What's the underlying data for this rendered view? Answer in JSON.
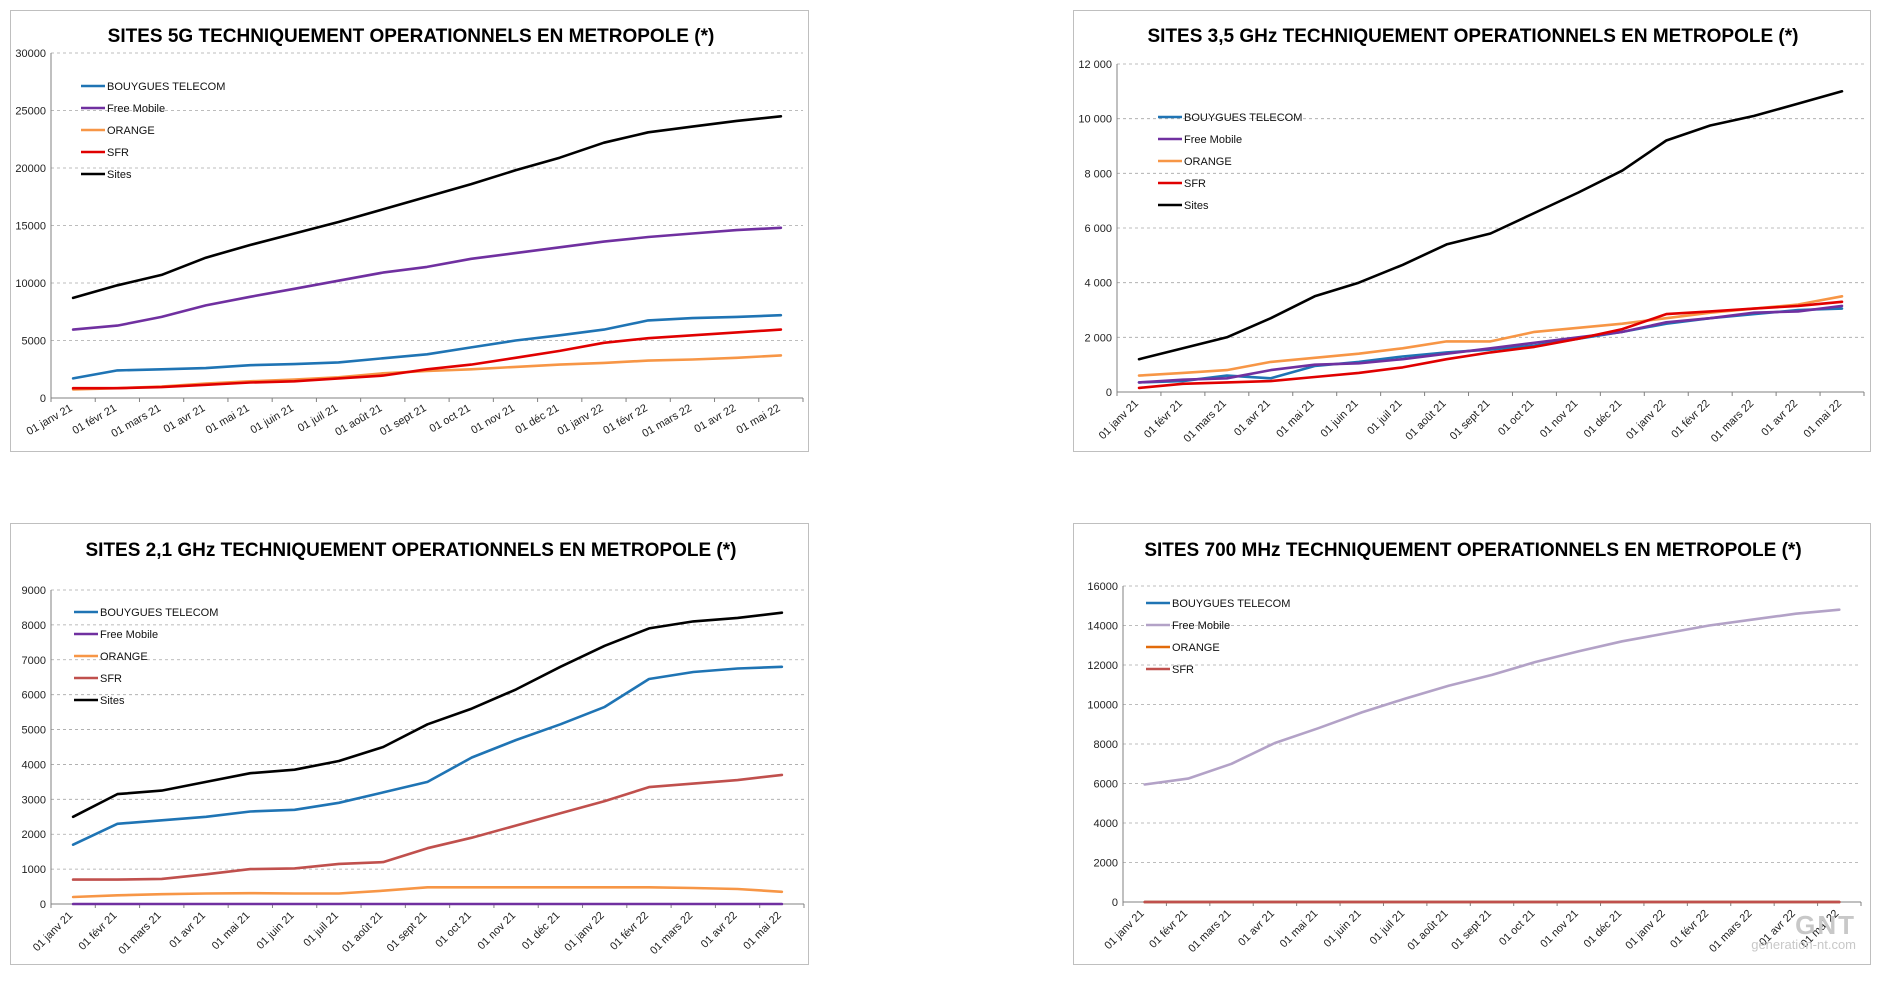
{
  "watermark": {
    "logo": "GNT",
    "site": "generation-nt.com"
  },
  "chart_data": [
    {
      "type": "line",
      "title": "SITES 5G TECHNIQUEMENT OPERATIONNELS EN METROPOLE (*)",
      "categories": [
        "01 janv 21",
        "01 févr 21",
        "01 mars 21",
        "01 avr 21",
        "01 mai 21",
        "01 juin 21",
        "01 juil 21",
        "01 août 21",
        "01 sept 21",
        "01 oct 21",
        "01 nov 21",
        "01 déc 21",
        "01 janv 22",
        "01 févr 22",
        "01 mars 22",
        "01 avr 22",
        "01 mai 22"
      ],
      "yticks": [
        "0",
        "5000",
        "10000",
        "15000",
        "20000",
        "25000",
        "30000"
      ],
      "ylim": [
        0,
        30000
      ],
      "grid": true,
      "legend_position": "top-left",
      "series": [
        {
          "name": "BOUYGUES TELECOM",
          "color": "#1f74b4",
          "values": [
            1700,
            2400,
            2500,
            2600,
            2850,
            2950,
            3100,
            3450,
            3800,
            4400,
            5000,
            5450,
            5950,
            6750,
            6950,
            7050,
            7200
          ]
        },
        {
          "name": "Free Mobile",
          "color": "#7030a0",
          "values": [
            5950,
            6300,
            7050,
            8050,
            8800,
            9500,
            10200,
            10900,
            11400,
            12100,
            12600,
            13100,
            13600,
            14000,
            14300,
            14600,
            14800
          ]
        },
        {
          "name": "ORANGE",
          "color": "#f79646",
          "values": [
            750,
            850,
            1000,
            1250,
            1450,
            1600,
            1800,
            2150,
            2350,
            2500,
            2700,
            2900,
            3050,
            3250,
            3350,
            3500,
            3700
          ]
        },
        {
          "name": "SFR",
          "color": "#e00000",
          "values": [
            850,
            850,
            950,
            1150,
            1350,
            1450,
            1700,
            1950,
            2500,
            2900,
            3500,
            4100,
            4800,
            5200,
            5450,
            5700,
            5950
          ]
        },
        {
          "name": "Sites",
          "color": "#000000",
          "values": [
            8700,
            9800,
            10700,
            12200,
            13300,
            14300,
            15300,
            16400,
            17500,
            18600,
            19800,
            20900,
            22200,
            23100,
            23600,
            24100,
            24500
          ]
        }
      ]
    },
    {
      "type": "line",
      "title": "SITES 3,5 GHz TECHNIQUEMENT OPERATIONNELS EN METROPOLE (*)",
      "categories": [
        "01 janv 21",
        "01 févr 21",
        "01 mars 21",
        "01 avr 21",
        "01 mai 21",
        "01 juin 21",
        "01 juil 21",
        "01 août 21",
        "01 sept 21",
        "01 oct 21",
        "01 nov 21",
        "01 déc 21",
        "01 janv 22",
        "01 févr 22",
        "01 mars 22",
        "01 avr 22",
        "01 mai 22"
      ],
      "yticks": [
        "0",
        "2 000",
        "4 000",
        "6 000",
        "8 000",
        "10 000",
        "12 000"
      ],
      "ylim": [
        0,
        12000
      ],
      "grid": true,
      "legend_position": "top-left",
      "series": [
        {
          "name": "BOUYGUES TELECOM",
          "color": "#1f74b4",
          "values": [
            350,
            400,
            600,
            500,
            950,
            1100,
            1300,
            1450,
            1550,
            1700,
            1950,
            2200,
            2500,
            2700,
            2850,
            3000,
            3050
          ]
        },
        {
          "name": "Free Mobile",
          "color": "#7030a0",
          "values": [
            350,
            450,
            500,
            800,
            1000,
            1050,
            1200,
            1400,
            1600,
            1800,
            2000,
            2200,
            2550,
            2700,
            2900,
            2950,
            3150
          ]
        },
        {
          "name": "ORANGE",
          "color": "#f79646",
          "values": [
            600,
            700,
            800,
            1100,
            1250,
            1400,
            1600,
            1850,
            1850,
            2200,
            2350,
            2500,
            2700,
            2900,
            3050,
            3200,
            3500
          ]
        },
        {
          "name": "SFR",
          "color": "#e00000",
          "values": [
            150,
            300,
            350,
            400,
            550,
            700,
            900,
            1200,
            1450,
            1650,
            1950,
            2300,
            2850,
            2950,
            3050,
            3150,
            3300
          ]
        },
        {
          "name": "Sites",
          "color": "#000000",
          "values": [
            1200,
            1600,
            2000,
            2700,
            3500,
            4000,
            4650,
            5400,
            5800,
            6550,
            7300,
            8100,
            9200,
            9750,
            10100,
            10550,
            11000
          ]
        }
      ]
    },
    {
      "type": "line",
      "title": "SITES 2,1 GHz TECHNIQUEMENT OPERATIONNELS EN METROPOLE (*)",
      "categories": [
        "01 janv 21",
        "01 févr 21",
        "01 mars 21",
        "01 avr 21",
        "01 mai 21",
        "01 juin 21",
        "01 juil 21",
        "01 août 21",
        "01 sept 21",
        "01 oct 21",
        "01 nov 21",
        "01 déc 21",
        "01 janv 22",
        "01 févr 22",
        "01 mars 22",
        "01 avr 22",
        "01 mai 22"
      ],
      "yticks": [
        "0",
        "1000",
        "2000",
        "3000",
        "4000",
        "5000",
        "6000",
        "7000",
        "8000",
        "9000"
      ],
      "ylim": [
        0,
        9000
      ],
      "grid": true,
      "legend_position": "top-left",
      "series": [
        {
          "name": "BOUYGUES TELECOM",
          "color": "#1f74b4",
          "values": [
            1700,
            2300,
            2400,
            2500,
            2650,
            2700,
            2900,
            3200,
            3500,
            4200,
            4700,
            5150,
            5650,
            6450,
            6650,
            6750,
            6800
          ]
        },
        {
          "name": "Free Mobile",
          "color": "#7030a0",
          "values": [
            0,
            0,
            0,
            0,
            0,
            0,
            0,
            0,
            0,
            0,
            0,
            0,
            0,
            0,
            0,
            0,
            0
          ]
        },
        {
          "name": "ORANGE",
          "color": "#f79646",
          "values": [
            200,
            250,
            280,
            300,
            310,
            300,
            300,
            380,
            480,
            480,
            480,
            480,
            480,
            480,
            460,
            430,
            350
          ]
        },
        {
          "name": "SFR",
          "color": "#c0504d",
          "values": [
            700,
            700,
            720,
            850,
            1000,
            1020,
            1150,
            1200,
            1600,
            1900,
            2250,
            2600,
            2950,
            3350,
            3450,
            3550,
            3700
          ]
        },
        {
          "name": "Sites",
          "color": "#000000",
          "values": [
            2500,
            3150,
            3250,
            3500,
            3750,
            3850,
            4100,
            4500,
            5150,
            5600,
            6150,
            6800,
            7400,
            7900,
            8100,
            8200,
            8350
          ]
        }
      ]
    },
    {
      "type": "line",
      "title": "SITES 700 MHz TECHNIQUEMENT OPERATIONNELS EN METROPOLE (*)",
      "categories": [
        "01 janv 21",
        "01 févr 21",
        "01 mars 21",
        "01 avr 21",
        "01 mai 21",
        "01 juin 21",
        "01 juil 21",
        "01 août 21",
        "01 sept 21",
        "01 oct 21",
        "01 nov 21",
        "01 déc 21",
        "01 janv 22",
        "01 févr 22",
        "01 mars 22",
        "01 avr 22",
        "01 mai 22"
      ],
      "yticks": [
        "0",
        "2000",
        "4000",
        "6000",
        "8000",
        "10000",
        "12000",
        "14000",
        "16000"
      ],
      "ylim": [
        0,
        16000
      ],
      "grid": true,
      "legend_position": "top-left",
      "series": [
        {
          "name": "BOUYGUES TELECOM",
          "color": "#1f74b4",
          "values": [
            0,
            0,
            0,
            0,
            0,
            0,
            0,
            0,
            0,
            0,
            0,
            0,
            0,
            0,
            0,
            0,
            0
          ]
        },
        {
          "name": "Free Mobile",
          "color": "#b3a2c7",
          "values": [
            5950,
            6250,
            7000,
            8050,
            8800,
            9600,
            10300,
            10950,
            11500,
            12150,
            12700,
            13200,
            13600,
            14000,
            14300,
            14600,
            14800
          ]
        },
        {
          "name": "ORANGE",
          "color": "#e26b0a",
          "values": [
            0,
            0,
            0,
            0,
            0,
            0,
            0,
            0,
            0,
            0,
            0,
            0,
            0,
            0,
            0,
            0,
            0
          ]
        },
        {
          "name": "SFR",
          "color": "#c0504d",
          "values": [
            0,
            0,
            0,
            0,
            0,
            0,
            0,
            0,
            0,
            0,
            0,
            0,
            0,
            0,
            0,
            0,
            0
          ]
        }
      ]
    }
  ]
}
